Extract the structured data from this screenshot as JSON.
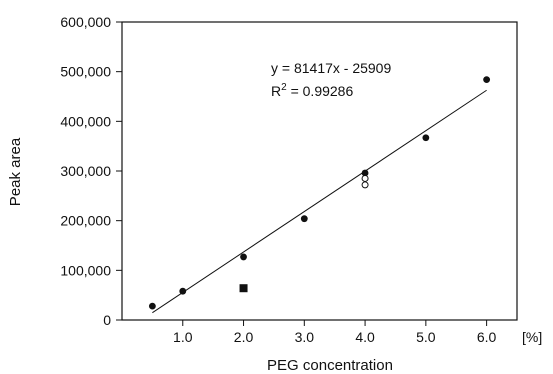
{
  "chart_data": {
    "type": "scatter",
    "xlabel": "PEG concentration",
    "ylabel": "Peak area",
    "x_unit_label": "[%]",
    "xlim": [
      0,
      6.5
    ],
    "ylim": [
      0,
      600000
    ],
    "x_ticks": [
      1.0,
      2.0,
      3.0,
      4.0,
      5.0,
      6.0
    ],
    "x_tick_labels": [
      "1.0",
      "2.0",
      "3.0",
      "4.0",
      "5.0",
      "6.0"
    ],
    "y_ticks": [
      0,
      100000,
      200000,
      300000,
      400000,
      500000,
      600000
    ],
    "y_tick_labels": [
      "0",
      "100,000",
      "200,000",
      "300,000",
      "400,000",
      "500,000",
      "600,000"
    ],
    "grid": false,
    "series": [
      {
        "marker": "filled-circle",
        "color": "#111111",
        "points": [
          {
            "x": 0.5,
            "y": 28000
          },
          {
            "x": 1.0,
            "y": 58000
          },
          {
            "x": 2.0,
            "y": 127000
          },
          {
            "x": 3.0,
            "y": 204000
          },
          {
            "x": 4.0,
            "y": 296000
          },
          {
            "x": 5.0,
            "y": 367000
          },
          {
            "x": 6.0,
            "y": 484000
          }
        ]
      },
      {
        "marker": "open-circle",
        "color": "#111111",
        "points": [
          {
            "x": 4.0,
            "y": 285000
          },
          {
            "x": 4.0,
            "y": 272000
          }
        ]
      },
      {
        "marker": "filled-square",
        "color": "#111111",
        "points": [
          {
            "x": 2.0,
            "y": 64000
          }
        ]
      }
    ],
    "fit_line": {
      "slope": 81417,
      "intercept": -25909,
      "x_range": [
        0.5,
        6.0
      ]
    },
    "annotations": {
      "equation": "y = 81417x - 25909",
      "r2_label": "R",
      "r2_superscript": "2",
      "r2_value": " = 0.99286"
    }
  }
}
